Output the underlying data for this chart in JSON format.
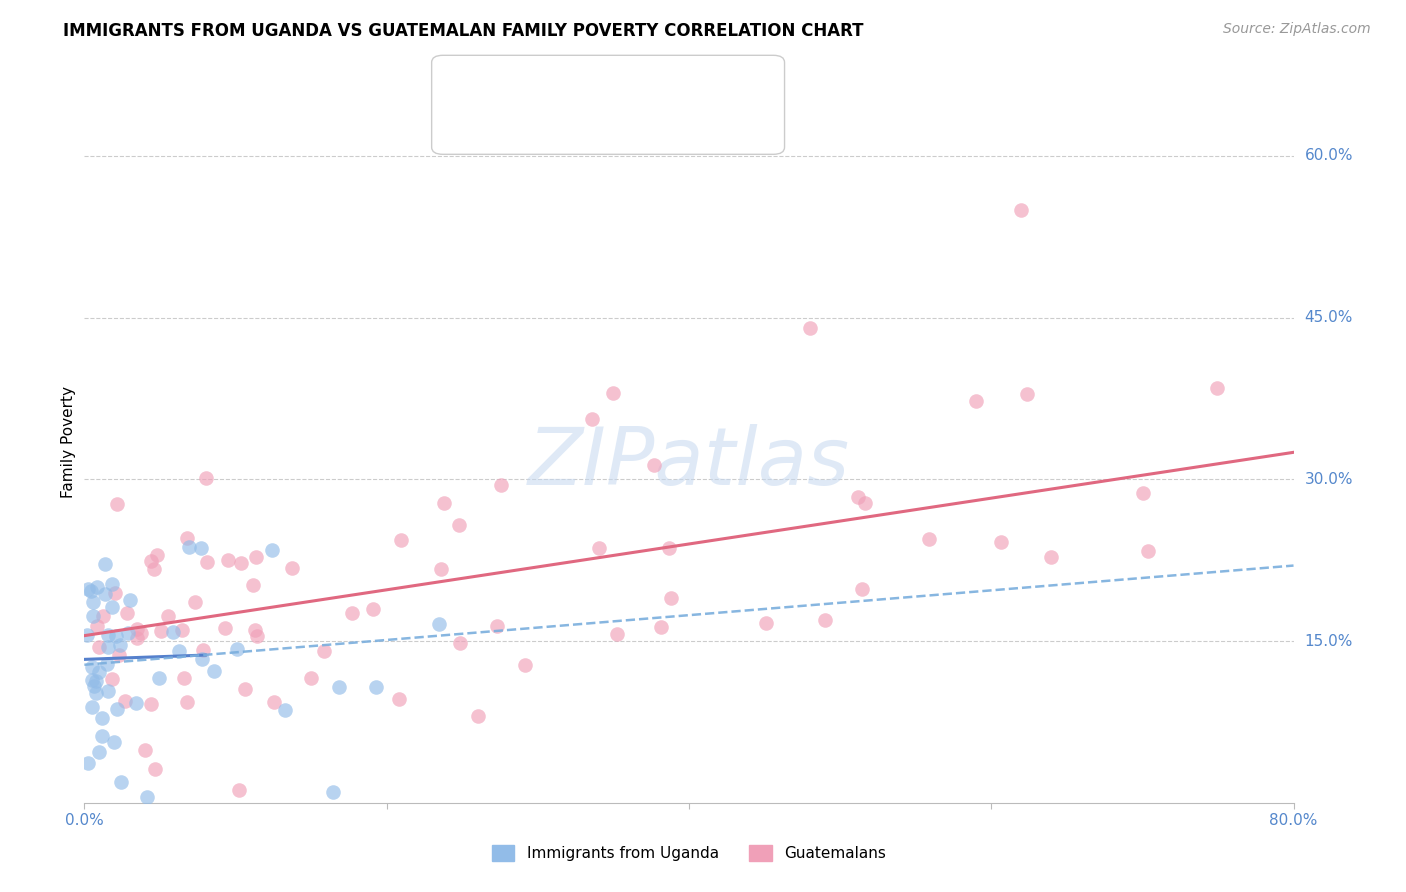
{
  "title": "IMMIGRANTS FROM UGANDA VS GUATEMALAN FAMILY POVERTY CORRELATION CHART",
  "source": "Source: ZipAtlas.com",
  "ylabel": "Family Poverty",
  "ytick_labels": [
    "60.0%",
    "45.0%",
    "30.0%",
    "15.0%"
  ],
  "ytick_values": [
    0.6,
    0.45,
    0.3,
    0.15
  ],
  "xlim": [
    0.0,
    0.8
  ],
  "ylim": [
    0.0,
    0.67
  ],
  "uganda_color": "#92bce8",
  "guatemalan_color": "#f0a0b8",
  "trendline_uganda_solid_color": "#5580cc",
  "trendline_uganda_dashed_color": "#7aaedd",
  "trendline_guatemalan_color": "#e06880",
  "legend_box_color": "#dddddd",
  "watermark_color": "#c5d8f0",
  "grid_color": "#cccccc",
  "axis_label_color": "#5588cc",
  "title_fontsize": 12,
  "source_fontsize": 10,
  "tick_fontsize": 11,
  "ylabel_fontsize": 11,
  "scatter_size": 110,
  "scatter_alpha": 0.65,
  "uganda_solid_line": [
    0.0,
    0.133,
    0.08,
    0.137
  ],
  "uganda_dashed_line": [
    0.0,
    0.128,
    0.8,
    0.22
  ],
  "guatemalan_line": [
    0.0,
    0.155,
    0.8,
    0.325
  ]
}
